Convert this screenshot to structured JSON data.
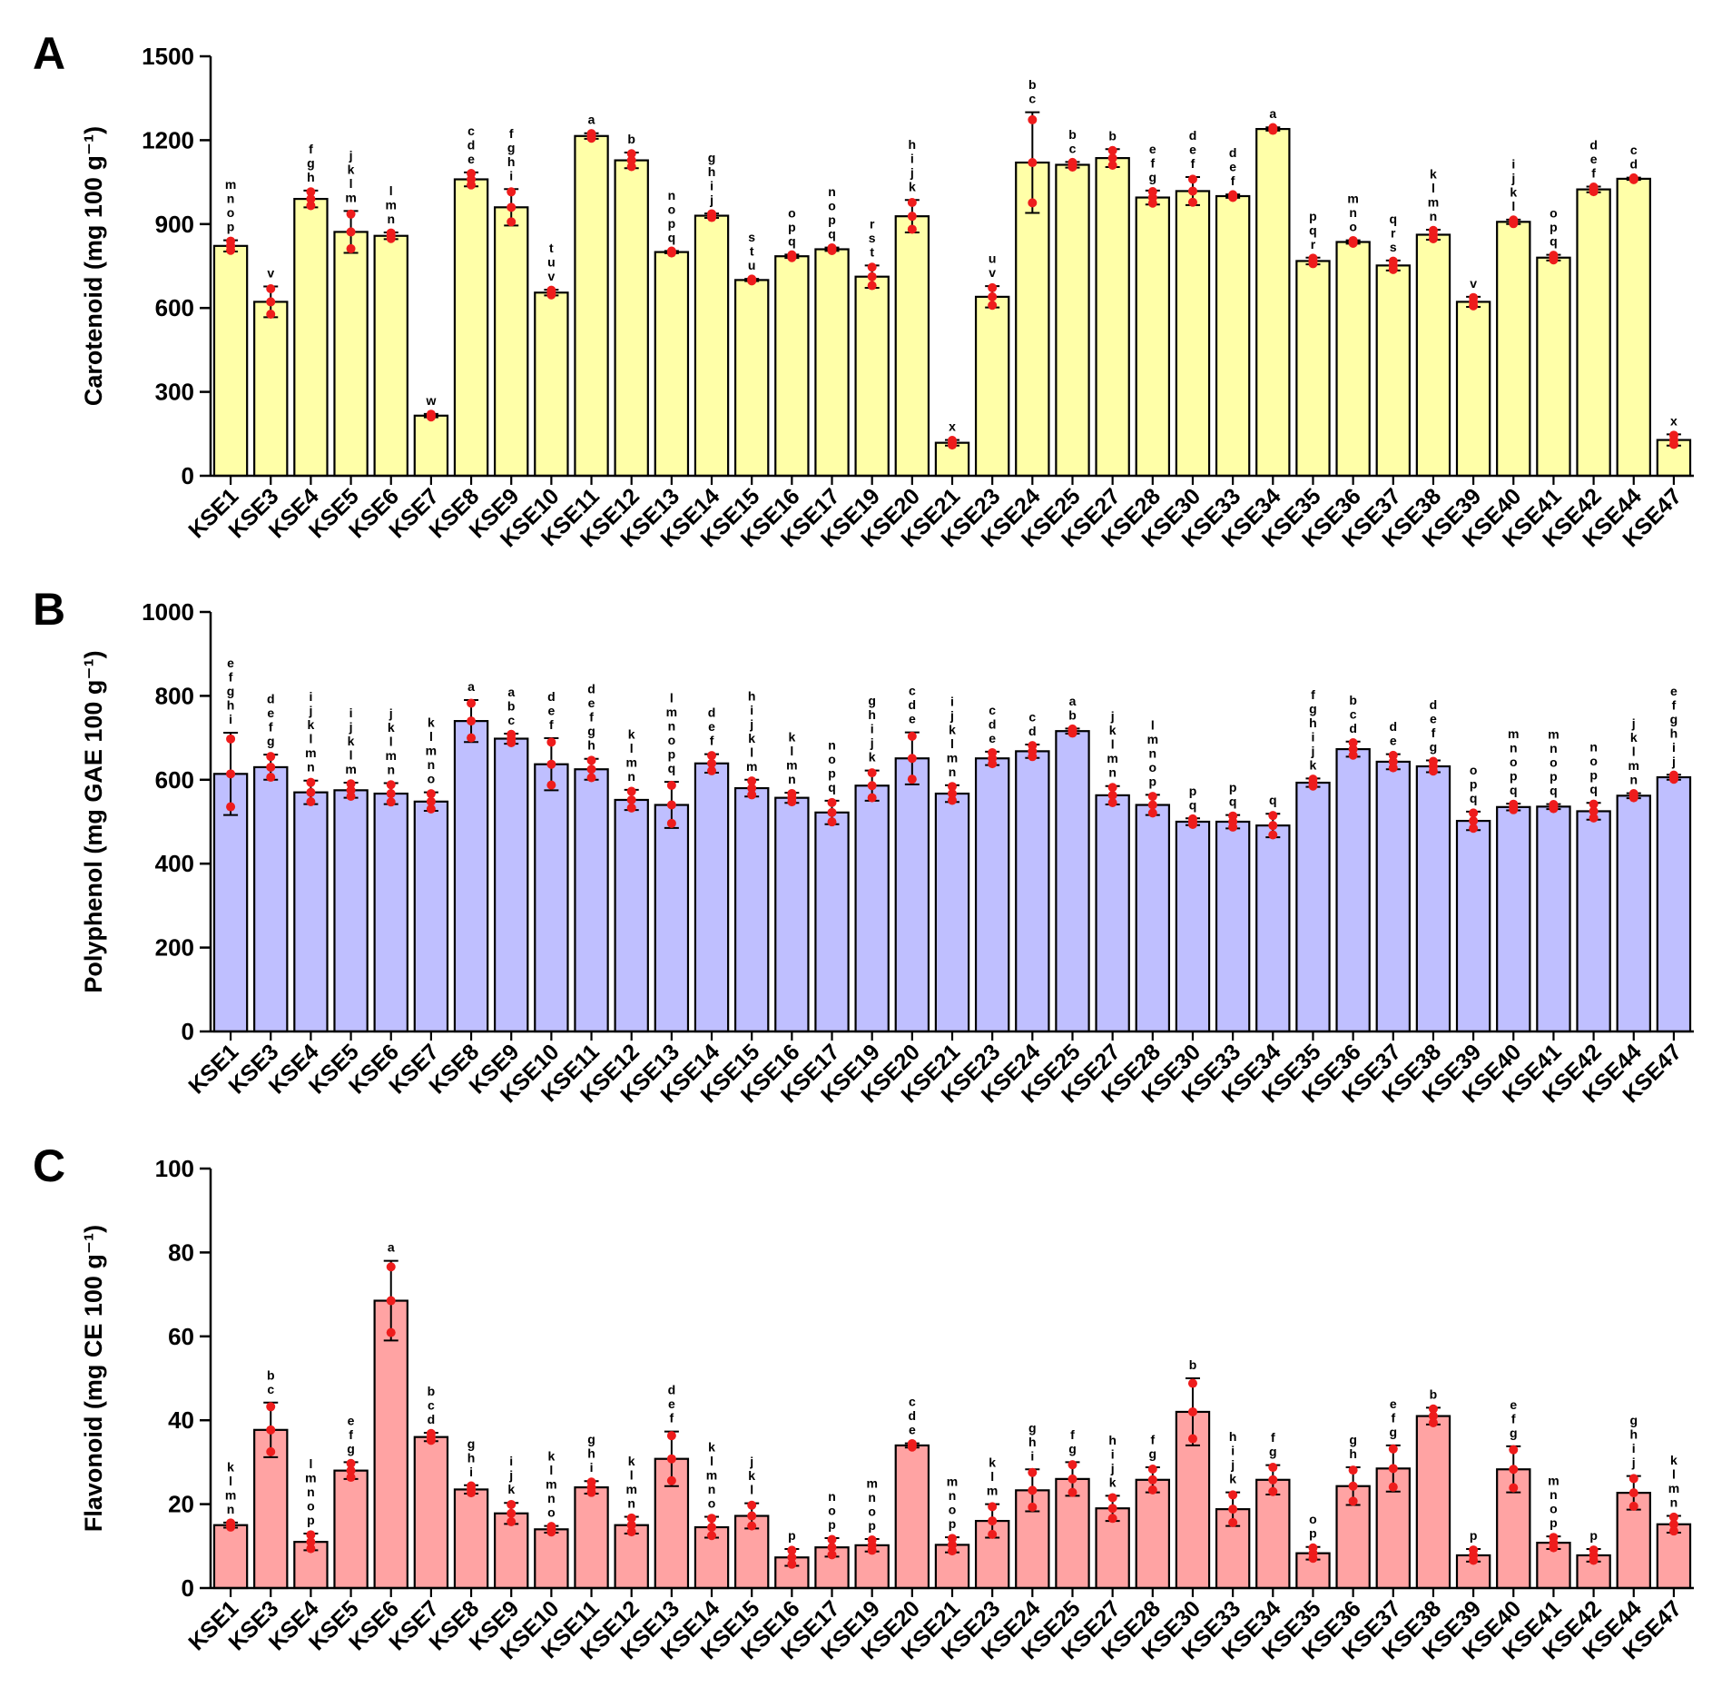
{
  "chart_data": [
    {
      "type": "bar",
      "panel_label": "A",
      "ylabel": "Carotenoid (mg 100 g⁻¹)",
      "ylim": [
        0,
        1500
      ],
      "yticks": [
        0,
        300,
        600,
        900,
        1200,
        1500
      ],
      "bar_color": "#FFFFA8",
      "categories": [
        "KSE1",
        "KSE3",
        "KSE4",
        "KSE5",
        "KSE6",
        "KSE7",
        "KSE8",
        "KSE9",
        "KSE10",
        "KSE11",
        "KSE12",
        "KSE13",
        "KSE14",
        "KSE15",
        "KSE16",
        "KSE17",
        "KSE19",
        "KSE20",
        "KSE21",
        "KSE23",
        "KSE24",
        "KSE25",
        "KSE27",
        "KSE28",
        "KSE30",
        "KSE33",
        "KSE34",
        "KSE35",
        "KSE36",
        "KSE37",
        "KSE38",
        "KSE39",
        "KSE40",
        "KSE41",
        "KSE42",
        "KSE44",
        "KSE47"
      ],
      "values": [
        822,
        622,
        990,
        872,
        858,
        215,
        1060,
        960,
        655,
        1215,
        1128,
        800,
        930,
        700,
        785,
        810,
        712,
        928,
        118,
        640,
        1120,
        1112,
        1136,
        995,
        1018,
        1000,
        1240,
        768,
        836,
        752,
        862,
        622,
        908,
        780,
        1024,
        1062,
        128
      ],
      "errors": [
        20,
        55,
        30,
        75,
        12,
        6,
        25,
        65,
        10,
        10,
        28,
        4,
        8,
        4,
        6,
        6,
        40,
        58,
        10,
        38,
        180,
        10,
        32,
        25,
        50,
        6,
        6,
        12,
        6,
        18,
        18,
        18,
        8,
        10,
        10,
        4,
        20
      ],
      "letters": [
        "mnop",
        "v",
        "fgh",
        "jklm",
        "lmn",
        "w",
        "cde",
        "fghi",
        "tuv",
        "a",
        "b",
        "nopq",
        "ghij",
        "stu",
        "opq",
        "nopq",
        "rst",
        "hijk",
        "x",
        "uv",
        "bc",
        "bc",
        "b",
        "efg",
        "def",
        "def",
        "a",
        "pqr",
        "mno",
        "qrs",
        "klmn",
        "v",
        "ijkl",
        "opq",
        "def",
        "cd",
        "x"
      ]
    },
    {
      "type": "bar",
      "panel_label": "B",
      "ylabel": "Polyphenol (mg GAE 100 g⁻¹)",
      "ylim": [
        0,
        1000
      ],
      "yticks": [
        0,
        200,
        400,
        600,
        800,
        1000
      ],
      "bar_color": "#BFBFFF",
      "categories": [
        "KSE1",
        "KSE3",
        "KSE4",
        "KSE5",
        "KSE6",
        "KSE7",
        "KSE8",
        "KSE9",
        "KSE10",
        "KSE11",
        "KSE12",
        "KSE13",
        "KSE14",
        "KSE15",
        "KSE16",
        "KSE17",
        "KSE19",
        "KSE20",
        "KSE21",
        "KSE23",
        "KSE24",
        "KSE25",
        "KSE27",
        "KSE28",
        "KSE30",
        "KSE33",
        "KSE34",
        "KSE35",
        "KSE36",
        "KSE37",
        "KSE38",
        "KSE39",
        "KSE40",
        "KSE41",
        "KSE42",
        "KSE44",
        "KSE47"
      ],
      "values": [
        614,
        630,
        570,
        575,
        567,
        548,
        740,
        698,
        637,
        625,
        552,
        540,
        639,
        580,
        557,
        522,
        586,
        651,
        567,
        651,
        668,
        716,
        563,
        540,
        500,
        500,
        491,
        593,
        673,
        643,
        632,
        502,
        535,
        536,
        525,
        562,
        606
      ],
      "errors": [
        98,
        30,
        28,
        18,
        25,
        22,
        50,
        12,
        62,
        25,
        24,
        55,
        22,
        20,
        12,
        28,
        36,
        62,
        20,
        16,
        16,
        6,
        22,
        24,
        8,
        16,
        28,
        10,
        18,
        18,
        14,
        22,
        8,
        6,
        20,
        6,
        6
      ],
      "letters": [
        "efghi",
        "defg",
        "ijklmn",
        "ijklm",
        "jklmn",
        "klmno",
        "a",
        "abc",
        "def",
        "defgh",
        "klmn",
        "lmnopq",
        "def",
        "hijklm",
        "klmn",
        "nopq",
        "ghijk",
        "cde",
        "ijklmn",
        "cde",
        "cd",
        "ab",
        "jklmn",
        "lmnop",
        "pq",
        "pq",
        "q",
        "fghijk",
        "bcd",
        "de",
        "defg",
        "opq",
        "mnopq",
        "mnopq",
        "nopq",
        "jklmn",
        "efghij"
      ]
    },
    {
      "type": "bar",
      "panel_label": "C",
      "ylabel": "Flavonoid (mg CE 100 g⁻¹)",
      "ylim": [
        0,
        100
      ],
      "yticks": [
        0,
        20,
        40,
        60,
        80,
        100
      ],
      "bar_color": "#FFA3A3",
      "categories": [
        "KSE1",
        "KSE3",
        "KSE4",
        "KSE5",
        "KSE6",
        "KSE7",
        "KSE8",
        "KSE9",
        "KSE10",
        "KSE11",
        "KSE12",
        "KSE13",
        "KSE14",
        "KSE15",
        "KSE16",
        "KSE17",
        "KSE19",
        "KSE20",
        "KSE21",
        "KSE23",
        "KSE24",
        "KSE25",
        "KSE27",
        "KSE28",
        "KSE30",
        "KSE33",
        "KSE34",
        "KSE35",
        "KSE36",
        "KSE37",
        "KSE38",
        "KSE39",
        "KSE40",
        "KSE41",
        "KSE42",
        "KSE44",
        "KSE47"
      ],
      "values": [
        15,
        37.7,
        11,
        28,
        68.5,
        36,
        23.5,
        17.8,
        14,
        24,
        15,
        30.8,
        14.5,
        17.2,
        7.3,
        9.7,
        10.2,
        34,
        10.3,
        16,
        23.3,
        26,
        19,
        25.8,
        42,
        18.8,
        25.8,
        8.3,
        24.3,
        28.5,
        41,
        7.8,
        28.3,
        10.8,
        7.8,
        22.7,
        15.2
      ],
      "errors": [
        0.6,
        6.5,
        2,
        2,
        9.5,
        1,
        1,
        2.5,
        0.8,
        1.5,
        2,
        6.5,
        2.5,
        3,
        2,
        2.2,
        1.5,
        0.5,
        1.8,
        4,
        5,
        4,
        3,
        3,
        8,
        4,
        3.5,
        1.5,
        4.5,
        5.5,
        2,
        1.5,
        5.5,
        1.5,
        1.5,
        4,
        2
      ],
      "letters": [
        "klmn",
        "bc",
        "lmnop",
        "efg",
        "a",
        "bcd",
        "ghi",
        "ijk",
        "klmno",
        "ghi",
        "klmn",
        "def",
        "klmno",
        "jkl",
        "p",
        "nop",
        "mnop",
        "cde",
        "mnop",
        "klm",
        "ghi",
        "fg",
        "hijk",
        "fg",
        "b",
        "hijk",
        "fg",
        "op",
        "gh",
        "efg",
        "b",
        "p",
        "efg",
        "mnop",
        "p",
        "ghij",
        "klmn"
      ]
    }
  ]
}
